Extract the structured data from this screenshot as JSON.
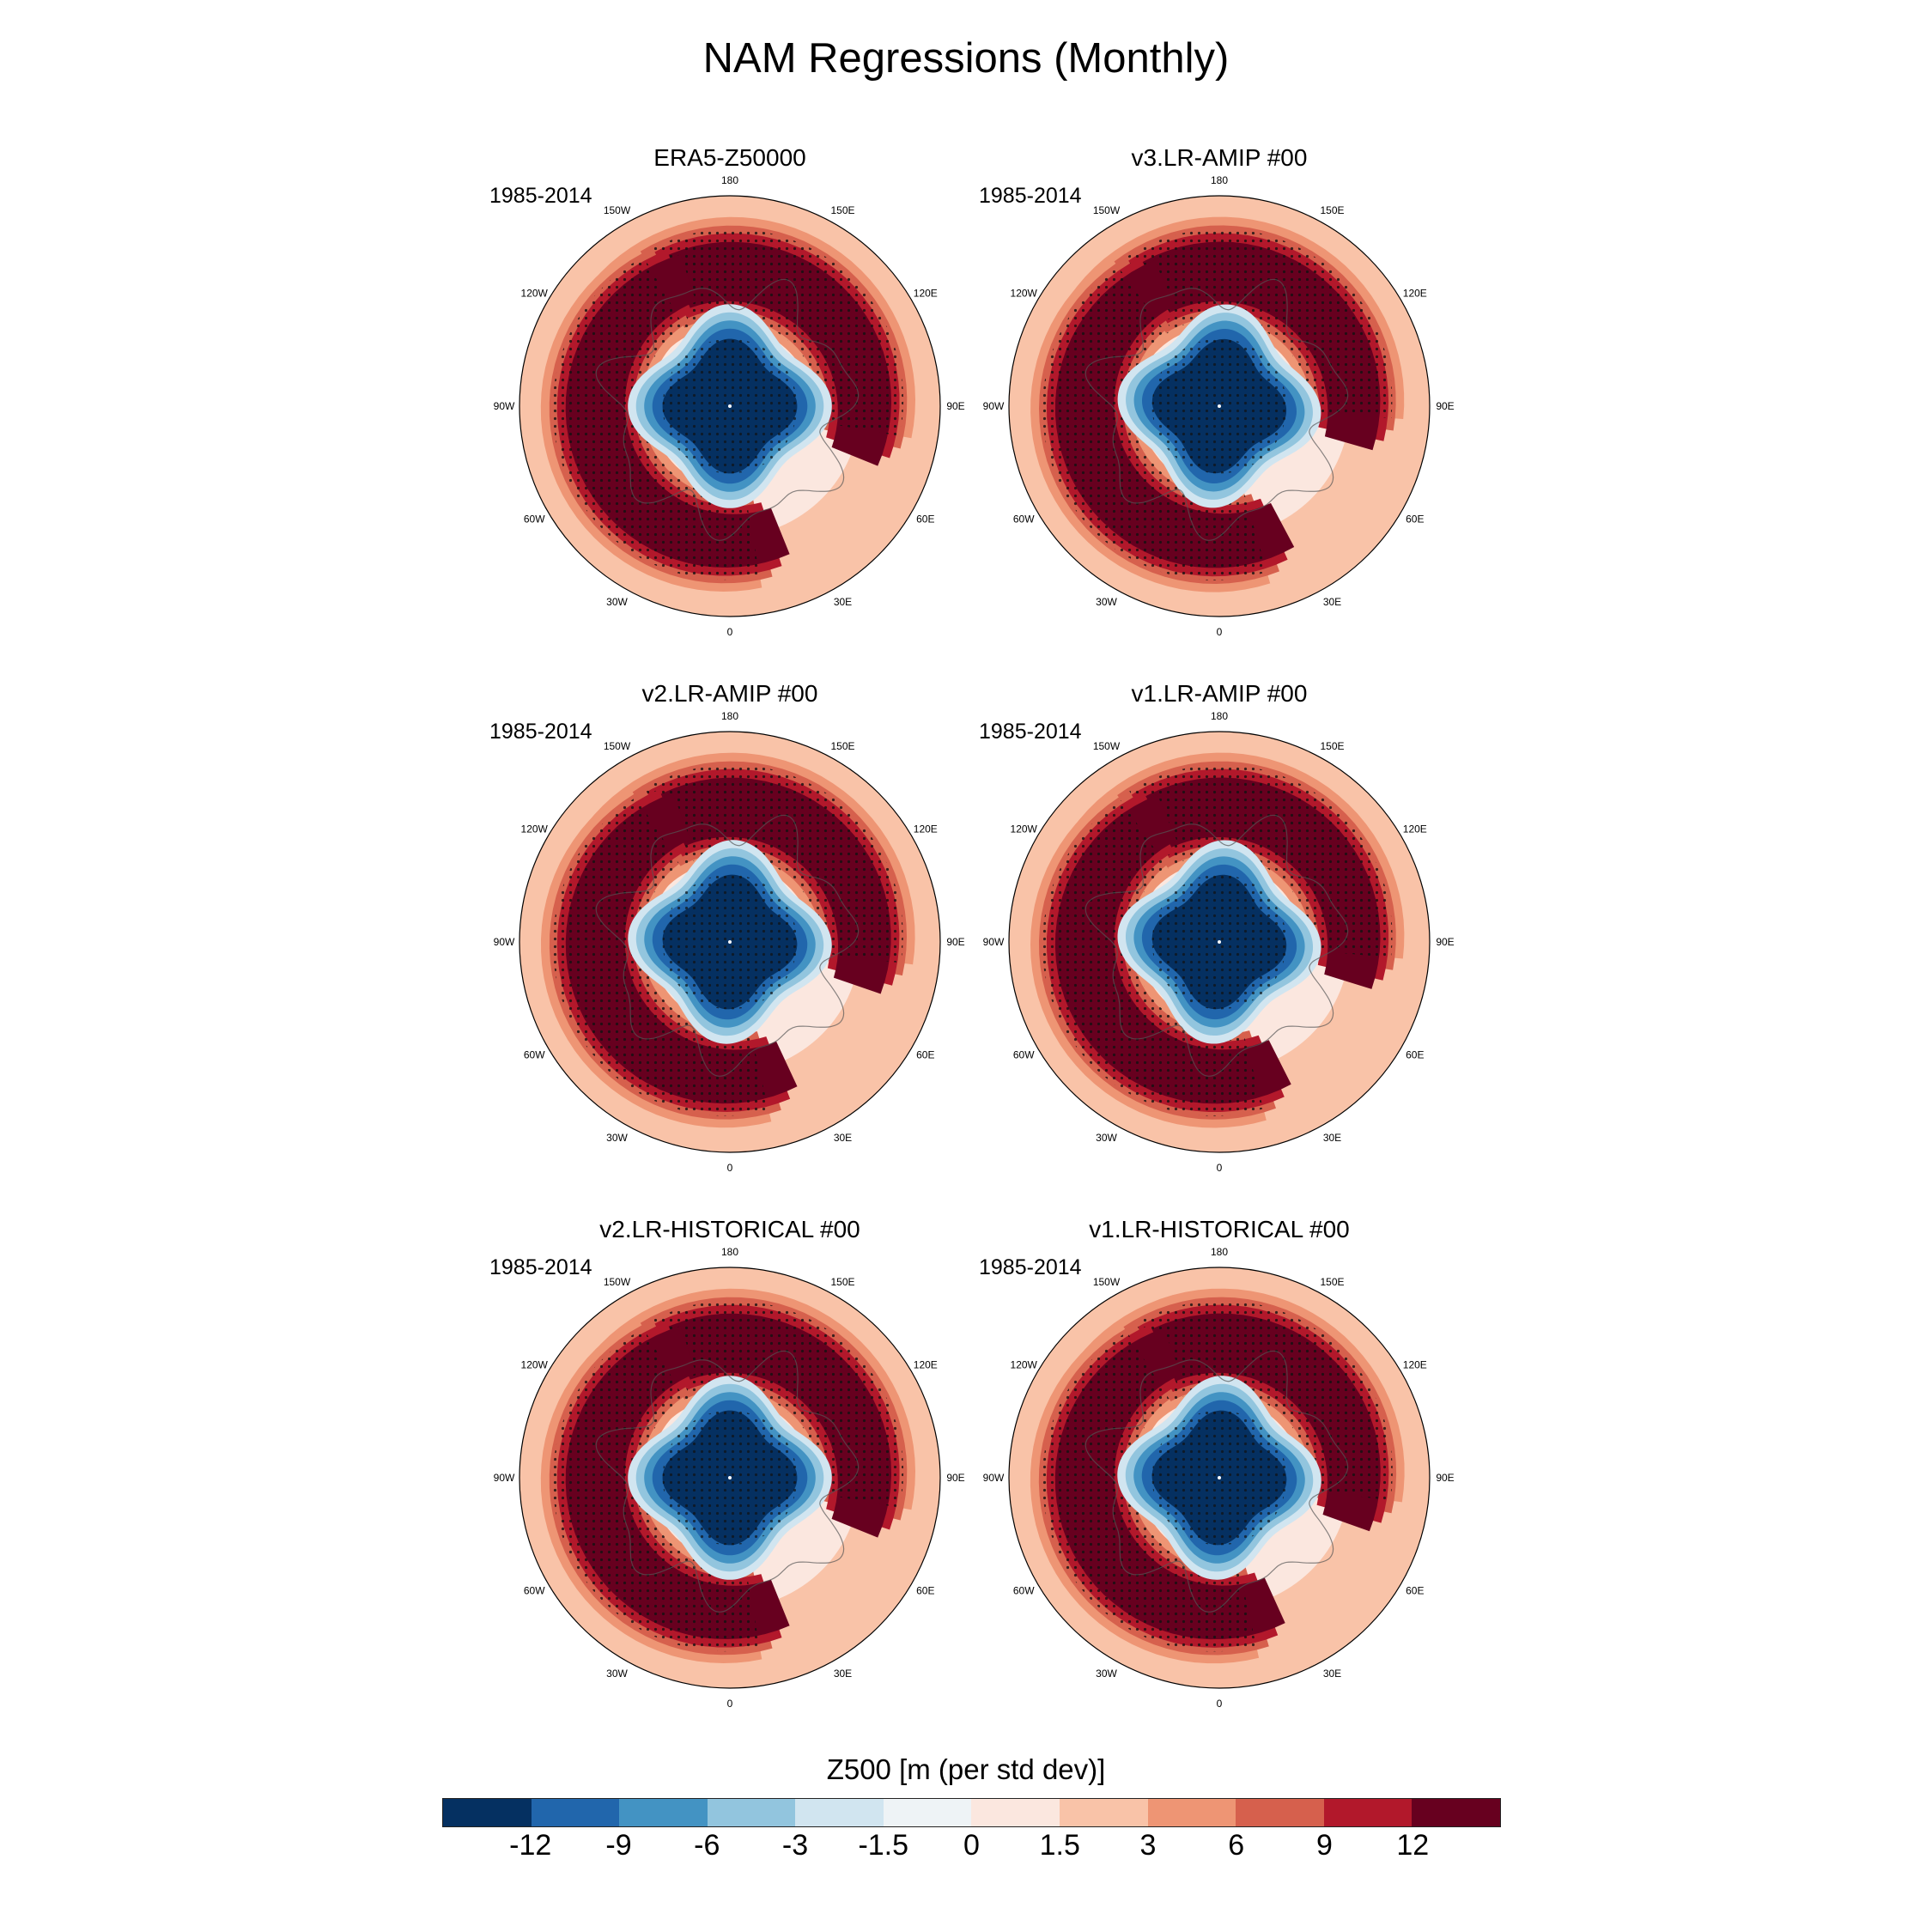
{
  "title": "NAM Regressions (Monthly)",
  "colorbar": {
    "label": "Z500 [m (per std dev)]",
    "colors": [
      "#053061",
      "#2166ac",
      "#4393c3",
      "#92c5de",
      "#d1e5f0",
      "#eef3f6",
      "#fbe7df",
      "#f9c3a8",
      "#ee9574",
      "#d6604d",
      "#b2182b",
      "#67001f"
    ],
    "ticks": [
      "-12",
      "-9",
      "-6",
      "-3",
      "-1.5",
      "0",
      "1.5",
      "3",
      "6",
      "9",
      "12"
    ]
  },
  "lon_labels": [
    "180",
    "150E",
    "120E",
    "90E",
    "60E",
    "30E",
    "0",
    "30W",
    "60W",
    "90W",
    "120W",
    "150W"
  ],
  "chart_data": [
    {
      "type": "polar-contour",
      "title": "ERA5-Z50000",
      "period": "1985-2014",
      "field": "Z500 regression on NAM index",
      "units": "m (per std dev)",
      "levels": [
        -12,
        -9,
        -6,
        -3,
        -1.5,
        0,
        1.5,
        3,
        6,
        9,
        12
      ],
      "center_min": -12,
      "pacific_max": 12,
      "atlantic_max": 12,
      "twist": 0.0
    },
    {
      "type": "polar-contour",
      "title": "v3.LR-AMIP  #00",
      "period": "1985-2014",
      "field": "Z500 regression on NAM index",
      "units": "m (per std dev)",
      "levels": [
        -12,
        -9,
        -6,
        -3,
        -1.5,
        0,
        1.5,
        3,
        6,
        9,
        12
      ],
      "center_min": -12,
      "pacific_max": 12,
      "atlantic_max": 12,
      "twist": 0.1
    },
    {
      "type": "polar-contour",
      "title": "v2.LR-AMIP  #00",
      "period": "1985-2014",
      "field": "Z500 regression on NAM index",
      "units": "m (per std dev)",
      "levels": [
        -12,
        -9,
        -6,
        -3,
        -1.5,
        0,
        1.5,
        3,
        6,
        9,
        12
      ],
      "center_min": -12,
      "pacific_max": 12,
      "atlantic_max": 12,
      "twist": 0.05
    },
    {
      "type": "polar-contour",
      "title": "v1.LR-AMIP  #00",
      "period": "1985-2014",
      "field": "Z500 regression on NAM index",
      "units": "m (per std dev)",
      "levels": [
        -12,
        -9,
        -6,
        -3,
        -1.5,
        0,
        1.5,
        3,
        6,
        9,
        12
      ],
      "center_min": -12,
      "pacific_max": 12,
      "atlantic_max": 12,
      "twist": 0.08
    },
    {
      "type": "polar-contour",
      "title": "v2.LR-HISTORICAL  #00",
      "period": "1985-2014",
      "field": "Z500 regression on NAM index",
      "units": "m (per std dev)",
      "levels": [
        -12,
        -9,
        -6,
        -3,
        -1.5,
        0,
        1.5,
        3,
        6,
        9,
        12
      ],
      "center_min": -12,
      "pacific_max": 12,
      "atlantic_max": 12,
      "twist": 0.0
    },
    {
      "type": "polar-contour",
      "title": "v1.LR-HISTORICAL  #00",
      "period": "1985-2014",
      "field": "Z500 regression on NAM index",
      "units": "m (per std dev)",
      "levels": [
        -12,
        -9,
        -6,
        -3,
        -1.5,
        0,
        1.5,
        3,
        6,
        9,
        12
      ],
      "center_min": -12,
      "pacific_max": 12,
      "atlantic_max": 12,
      "twist": 0.04
    }
  ]
}
